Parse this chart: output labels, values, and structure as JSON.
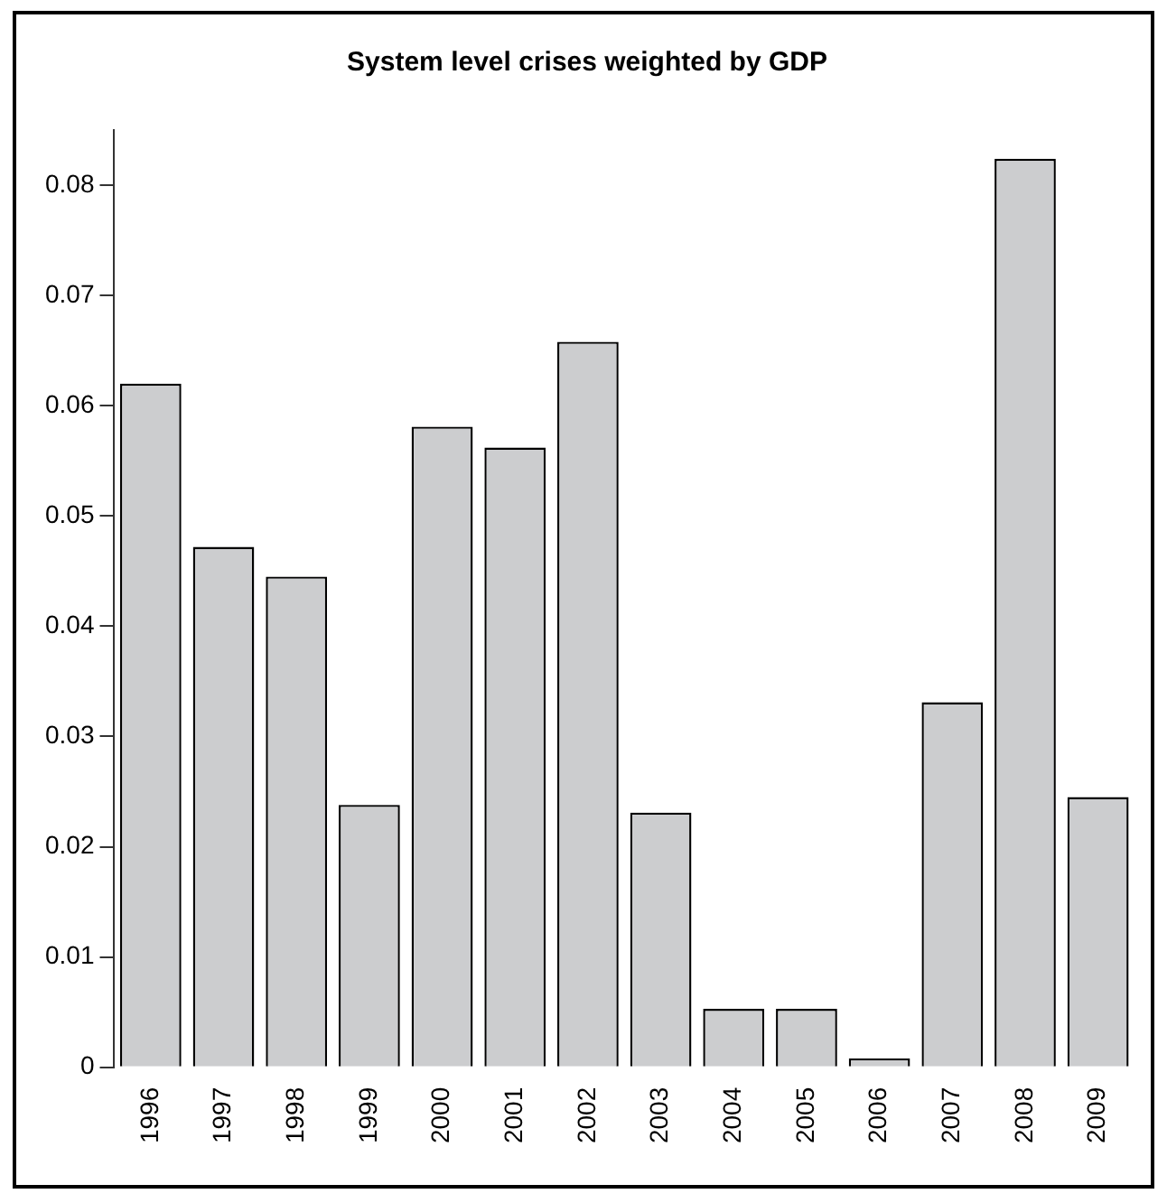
{
  "chart_data": {
    "type": "bar",
    "title": "System level crises weighted by GDP",
    "categories": [
      "1996",
      "1997",
      "1998",
      "1999",
      "2000",
      "2001",
      "2002",
      "2003",
      "2004",
      "2005",
      "2006",
      "2007",
      "2008",
      "2009"
    ],
    "values": [
      0.062,
      0.0472,
      0.0445,
      0.0238,
      0.0581,
      0.0562,
      0.0658,
      0.0231,
      0.0053,
      0.0053,
      0.0008,
      0.0331,
      0.0824,
      0.0245
    ],
    "color": "#cccdcf",
    "ylim": [
      0,
      0.085
    ],
    "yticks": [
      0,
      0.01,
      0.02,
      0.03,
      0.04,
      0.05,
      0.06,
      0.07,
      0.08
    ],
    "grid": false
  }
}
